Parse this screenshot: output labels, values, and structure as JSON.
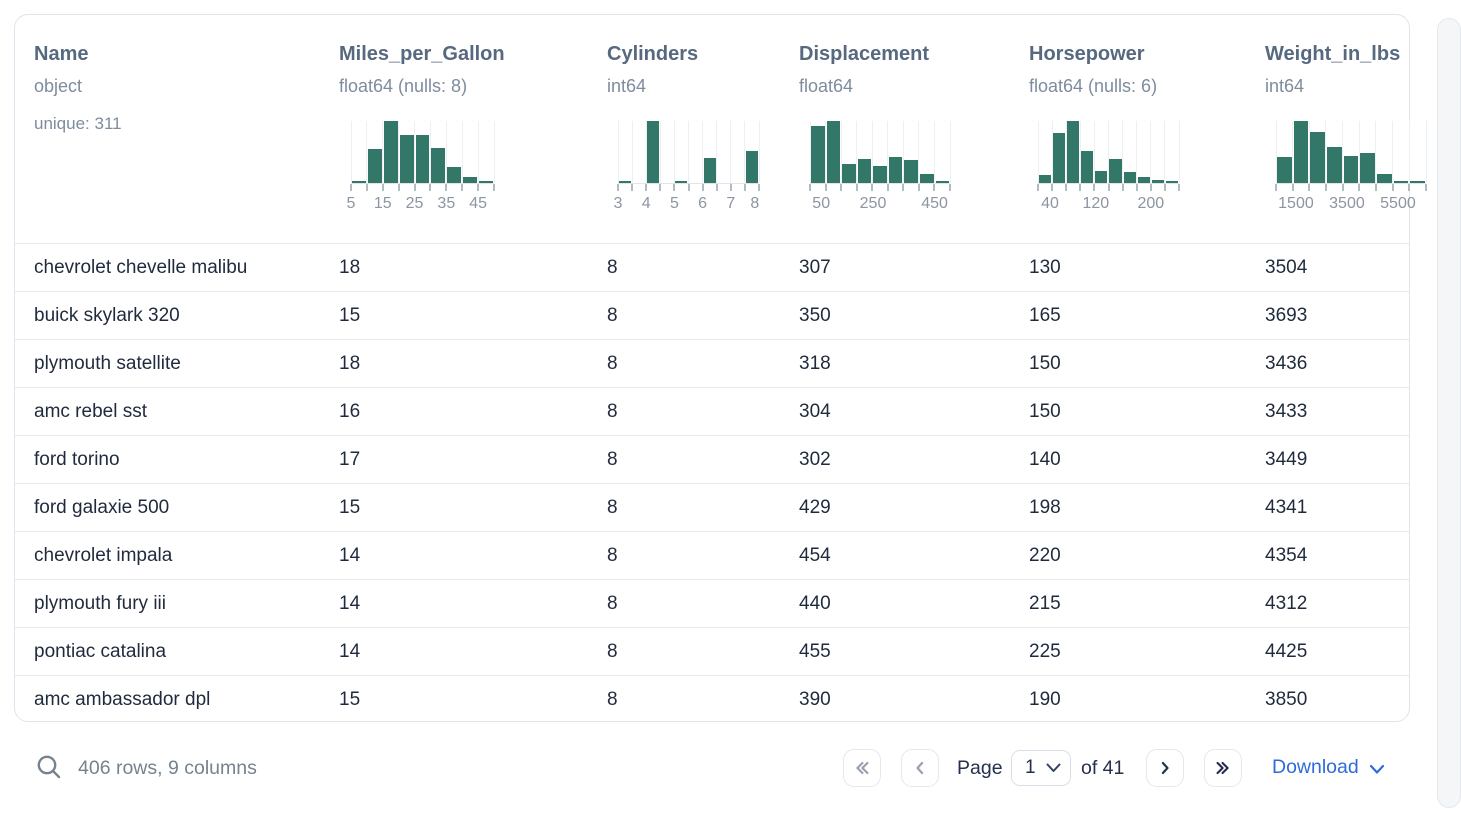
{
  "colors": {
    "histogram_bar": "#337768",
    "accent_blue": "#2e6bd8"
  },
  "table": {
    "columns": [
      {
        "name": "Name",
        "dtype": "object",
        "extra": "unique: 311"
      },
      {
        "name": "Miles_per_Gallon",
        "dtype": "float64 (nulls: 8)",
        "histogram": {
          "type": "bar",
          "bars": [
            3,
            55,
            100,
            78,
            77,
            57,
            26,
            9,
            3
          ],
          "axis_labels": [
            {
              "text": "5",
              "frac": 0.0
            },
            {
              "text": "15",
              "frac": 0.2222
            },
            {
              "text": "25",
              "frac": 0.4444
            },
            {
              "text": "35",
              "frac": 0.6667
            },
            {
              "text": "45",
              "frac": 0.8889
            }
          ]
        }
      },
      {
        "name": "Cylinders",
        "dtype": "int64",
        "histogram": {
          "type": "bar",
          "bars": [
            2,
            0,
            100,
            0,
            2,
            0,
            40,
            0,
            0,
            52
          ],
          "axis_labels": [
            {
              "text": "3",
              "frac": 0.0
            },
            {
              "text": "4",
              "frac": 0.2
            },
            {
              "text": "5",
              "frac": 0.4
            },
            {
              "text": "6",
              "frac": 0.6
            },
            {
              "text": "7",
              "frac": 0.8
            },
            {
              "text": "8",
              "frac": 0.97
            }
          ]
        }
      },
      {
        "name": "Displacement",
        "dtype": "float64",
        "histogram": {
          "type": "bar",
          "bars": [
            92,
            100,
            30,
            38,
            27,
            42,
            37,
            15,
            4
          ],
          "axis_labels": [
            {
              "text": "50",
              "frac": 0.08
            },
            {
              "text": "250",
              "frac": 0.45
            },
            {
              "text": "450",
              "frac": 0.89
            }
          ]
        }
      },
      {
        "name": "Horsepower",
        "dtype": "float64 (nulls: 6)",
        "histogram": {
          "type": "bar",
          "bars": [
            13,
            80,
            100,
            52,
            20,
            38,
            17,
            9,
            5,
            4
          ],
          "axis_labels": [
            {
              "text": "40",
              "frac": 0.085
            },
            {
              "text": "120",
              "frac": 0.41
            },
            {
              "text": "200",
              "frac": 0.8
            }
          ]
        }
      },
      {
        "name": "Weight_in_lbs",
        "dtype": "int64",
        "histogram": {
          "type": "bar",
          "bars": [
            42,
            100,
            82,
            58,
            44,
            48,
            14,
            2,
            1
          ],
          "axis_labels": [
            {
              "text": "1500",
              "frac": 0.133
            },
            {
              "text": "3500",
              "frac": 0.473
            },
            {
              "text": "5500",
              "frac": 0.813
            }
          ]
        }
      }
    ],
    "rows": [
      [
        "chevrolet chevelle malibu",
        "18",
        "8",
        "307",
        "130",
        "3504"
      ],
      [
        "buick skylark 320",
        "15",
        "8",
        "350",
        "165",
        "3693"
      ],
      [
        "plymouth satellite",
        "18",
        "8",
        "318",
        "150",
        "3436"
      ],
      [
        "amc rebel sst",
        "16",
        "8",
        "304",
        "150",
        "3433"
      ],
      [
        "ford torino",
        "17",
        "8",
        "302",
        "140",
        "3449"
      ],
      [
        "ford galaxie 500",
        "15",
        "8",
        "429",
        "198",
        "4341"
      ],
      [
        "chevrolet impala",
        "14",
        "8",
        "454",
        "220",
        "4354"
      ],
      [
        "plymouth fury iii",
        "14",
        "8",
        "440",
        "215",
        "4312"
      ],
      [
        "pontiac catalina",
        "14",
        "8",
        "455",
        "225",
        "4425"
      ],
      [
        "amc ambassador dpl",
        "15",
        "8",
        "390",
        "190",
        "3850"
      ]
    ]
  },
  "footer": {
    "summary": "406 rows, 9 columns",
    "page_label": "Page",
    "page_value": "1",
    "pages_label": "of 41",
    "download_label": "Download"
  }
}
